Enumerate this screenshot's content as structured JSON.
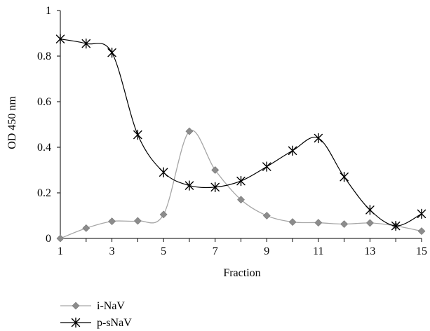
{
  "chart_data": {
    "type": "line",
    "title": "",
    "xlabel": "Fraction",
    "ylabel": "OD 450 nm",
    "xlim": [
      1,
      15
    ],
    "ylim": [
      0,
      1
    ],
    "x_ticks": [
      1,
      3,
      5,
      7,
      9,
      11,
      13,
      15
    ],
    "y_ticks": [
      0,
      0.2,
      0.4,
      0.6,
      0.8,
      1
    ],
    "y_tick_labels": [
      "0",
      "0.2",
      "0.4",
      "0.6",
      "0.8",
      "1"
    ],
    "grid": false,
    "legend_position": "bottom-left",
    "x": [
      1,
      2,
      3,
      4,
      5,
      6,
      7,
      8,
      9,
      10,
      11,
      12,
      13,
      14,
      15
    ],
    "series": [
      {
        "name": "i-NaV",
        "color": "#a6a6a6",
        "marker": "diamond",
        "values": [
          0.0,
          0.045,
          0.075,
          0.077,
          0.105,
          0.47,
          0.3,
          0.17,
          0.1,
          0.072,
          0.069,
          0.063,
          0.068,
          0.055,
          0.032
        ]
      },
      {
        "name": "p-sNaV",
        "color": "#000000",
        "marker": "asterisk",
        "values": [
          0.875,
          0.855,
          0.815,
          0.455,
          0.29,
          0.232,
          0.225,
          0.252,
          0.315,
          0.385,
          0.44,
          0.27,
          0.125,
          0.055,
          0.108
        ]
      }
    ]
  }
}
